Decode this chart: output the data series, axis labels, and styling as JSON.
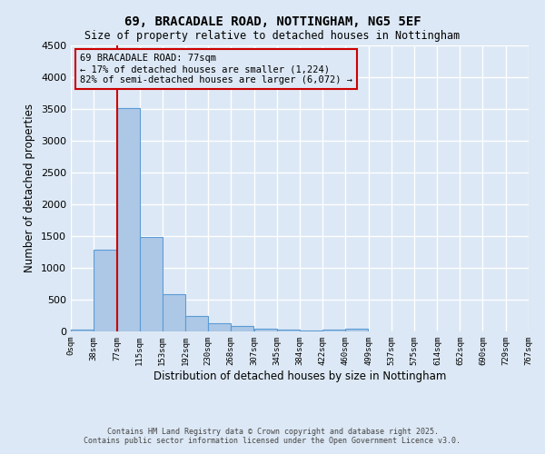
{
  "title_line1": "69, BRACADALE ROAD, NOTTINGHAM, NG5 5EF",
  "title_line2": "Size of property relative to detached houses in Nottingham",
  "xlabel": "Distribution of detached houses by size in Nottingham",
  "ylabel": "Number of detached properties",
  "bin_edges": [
    0,
    38,
    77,
    115,
    153,
    192,
    230,
    268,
    307,
    345,
    384,
    422,
    460,
    499,
    537,
    575,
    614,
    652,
    690,
    729,
    767
  ],
  "bar_heights": [
    30,
    1280,
    3520,
    1490,
    590,
    250,
    130,
    80,
    40,
    25,
    20,
    30,
    40,
    0,
    0,
    0,
    0,
    0,
    0,
    0
  ],
  "bar_color": "#adc8e6",
  "bar_edge_color": "#5b9bd5",
  "property_size": 77,
  "vline_color": "#cc0000",
  "annotation_text": "69 BRACADALE ROAD: 77sqm\n← 17% of detached houses are smaller (1,224)\n82% of semi-detached houses are larger (6,072) →",
  "annotation_box_color": "#cc0000",
  "ylim": [
    0,
    4500
  ],
  "yticks": [
    0,
    500,
    1000,
    1500,
    2000,
    2500,
    3000,
    3500,
    4000,
    4500
  ],
  "tick_labels": [
    "0sqm",
    "38sqm",
    "77sqm",
    "115sqm",
    "153sqm",
    "192sqm",
    "230sqm",
    "268sqm",
    "307sqm",
    "345sqm",
    "384sqm",
    "422sqm",
    "460sqm",
    "499sqm",
    "537sqm",
    "575sqm",
    "614sqm",
    "652sqm",
    "690sqm",
    "729sqm",
    "767sqm"
  ],
  "footer_line1": "Contains HM Land Registry data © Crown copyright and database right 2025.",
  "footer_line2": "Contains public sector information licensed under the Open Government Licence v3.0.",
  "background_color": "#dce8f5",
  "grid_color": "#ffffff"
}
